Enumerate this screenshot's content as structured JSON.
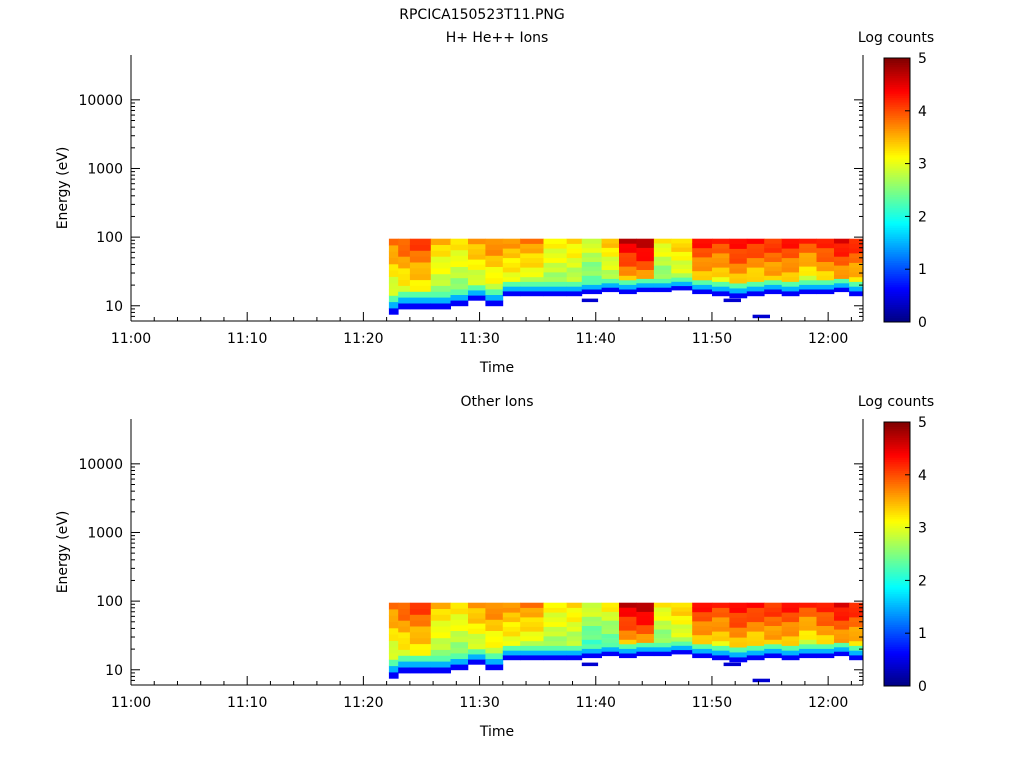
{
  "figure_title": "RPCICA150523T11.PNG",
  "colorbar_label": "Log counts",
  "colorbar_ticks": [
    "0",
    "1",
    "2",
    "3",
    "4",
    "5"
  ],
  "chart_data": [
    {
      "type": "heatmap",
      "title": "H+ He++ Ions",
      "xlabel": "Time",
      "ylabel": "Energy (eV)",
      "x_ticks": [
        "11:00",
        "11:10",
        "11:20",
        "11:30",
        "11:40",
        "11:50",
        "12:00"
      ],
      "y_ticks": [
        "10",
        "100",
        "1000",
        "10000"
      ],
      "y_scale": "log",
      "y_range": [
        6,
        45000
      ],
      "x_range_minutes": [
        0,
        63
      ],
      "color_range": [
        0,
        5
      ],
      "time_columns": [
        {
          "start": 22.2,
          "end": 23.0,
          "floor": 7.5,
          "upper": 3.8,
          "lower": 2.8
        },
        {
          "start": 23.0,
          "end": 24.0,
          "floor": 9.0,
          "upper": 4.0,
          "lower": 3.0
        },
        {
          "start": 24.0,
          "end": 25.8,
          "floor": 9.0,
          "upper": 4.1,
          "lower": 3.1
        },
        {
          "start": 25.8,
          "end": 27.5,
          "floor": 9.0,
          "upper": 3.4,
          "lower": 2.7
        },
        {
          "start": 27.5,
          "end": 29.0,
          "floor": 10.0,
          "upper": 3.3,
          "lower": 2.6
        },
        {
          "start": 29.0,
          "end": 30.5,
          "floor": 12.0,
          "upper": 3.6,
          "lower": 2.8
        },
        {
          "start": 30.5,
          "end": 32.0,
          "floor": 10.0,
          "upper": 3.8,
          "lower": 2.9
        },
        {
          "start": 32.0,
          "end": 33.5,
          "floor": 14.0,
          "upper": 3.6,
          "lower": 3.0
        },
        {
          "start": 33.5,
          "end": 35.5,
          "floor": 14.0,
          "upper": 3.7,
          "lower": 2.9
        },
        {
          "start": 35.5,
          "end": 37.5,
          "floor": 14.0,
          "upper": 3.2,
          "lower": 2.7
        },
        {
          "start": 37.5,
          "end": 38.8,
          "floor": 14.0,
          "upper": 3.3,
          "lower": 2.7
        },
        {
          "start": 38.8,
          "end": 40.5,
          "floor": 15.0,
          "upper": 3.0,
          "lower": 2.4
        },
        {
          "start": 40.5,
          "end": 42.0,
          "floor": 16.0,
          "upper": 3.4,
          "lower": 2.7
        },
        {
          "start": 42.0,
          "end": 43.5,
          "floor": 15.0,
          "upper": 4.6,
          "lower": 3.5
        },
        {
          "start": 43.5,
          "end": 45.0,
          "floor": 16.0,
          "upper": 4.8,
          "lower": 3.6
        },
        {
          "start": 45.0,
          "end": 46.5,
          "floor": 16.0,
          "upper": 3.2,
          "lower": 2.5
        },
        {
          "start": 46.5,
          "end": 48.3,
          "floor": 17.0,
          "upper": 3.4,
          "lower": 2.8
        },
        {
          "start": 48.3,
          "end": 50.0,
          "floor": 15.0,
          "upper": 4.3,
          "lower": 3.3
        },
        {
          "start": 50.0,
          "end": 51.5,
          "floor": 14.0,
          "upper": 4.1,
          "lower": 3.2
        },
        {
          "start": 51.5,
          "end": 53.0,
          "floor": 13.0,
          "upper": 4.4,
          "lower": 3.4
        },
        {
          "start": 53.0,
          "end": 54.5,
          "floor": 14.0,
          "upper": 4.3,
          "lower": 3.2
        },
        {
          "start": 54.5,
          "end": 56.0,
          "floor": 15.0,
          "upper": 4.2,
          "lower": 3.4
        },
        {
          "start": 56.0,
          "end": 57.5,
          "floor": 14.0,
          "upper": 4.3,
          "lower": 3.3
        },
        {
          "start": 57.5,
          "end": 59.0,
          "floor": 15.0,
          "upper": 4.1,
          "lower": 3.0
        },
        {
          "start": 59.0,
          "end": 60.5,
          "floor": 15.0,
          "upper": 4.3,
          "lower": 3.3
        },
        {
          "start": 60.5,
          "end": 61.8,
          "floor": 16.0,
          "upper": 4.5,
          "lower": 3.5
        },
        {
          "start": 61.8,
          "end": 63.0,
          "floor": 14.0,
          "upper": 4.3,
          "lower": 3.3
        }
      ],
      "isolated_low_bins": [
        {
          "start": 38.8,
          "end": 40.2,
          "energy": 12
        },
        {
          "start": 51.0,
          "end": 52.5,
          "energy": 12
        },
        {
          "start": 53.5,
          "end": 55.0,
          "energy": 7
        }
      ]
    },
    {
      "type": "heatmap",
      "title": "Other Ions",
      "xlabel": "Time",
      "ylabel": "Energy (eV)",
      "x_ticks": [
        "11:00",
        "11:10",
        "11:20",
        "11:30",
        "11:40",
        "11:50",
        "12:00"
      ],
      "y_ticks": [
        "10",
        "100",
        "1000",
        "10000"
      ],
      "y_scale": "log",
      "y_range": [
        6,
        45000
      ],
      "x_range_minutes": [
        0,
        63
      ],
      "color_range": [
        0,
        5
      ],
      "time_columns": [
        {
          "start": 22.2,
          "end": 23.0,
          "floor": 7.5,
          "upper": 3.8,
          "lower": 2.8
        },
        {
          "start": 23.0,
          "end": 24.0,
          "floor": 9.0,
          "upper": 4.0,
          "lower": 3.0
        },
        {
          "start": 24.0,
          "end": 25.8,
          "floor": 9.0,
          "upper": 4.1,
          "lower": 3.1
        },
        {
          "start": 25.8,
          "end": 27.5,
          "floor": 9.0,
          "upper": 3.4,
          "lower": 2.7
        },
        {
          "start": 27.5,
          "end": 29.0,
          "floor": 10.0,
          "upper": 3.3,
          "lower": 2.6
        },
        {
          "start": 29.0,
          "end": 30.5,
          "floor": 12.0,
          "upper": 3.6,
          "lower": 2.8
        },
        {
          "start": 30.5,
          "end": 32.0,
          "floor": 10.0,
          "upper": 3.8,
          "lower": 2.9
        },
        {
          "start": 32.0,
          "end": 33.5,
          "floor": 14.0,
          "upper": 3.6,
          "lower": 3.0
        },
        {
          "start": 33.5,
          "end": 35.5,
          "floor": 14.0,
          "upper": 3.7,
          "lower": 2.9
        },
        {
          "start": 35.5,
          "end": 37.5,
          "floor": 14.0,
          "upper": 3.2,
          "lower": 2.7
        },
        {
          "start": 37.5,
          "end": 38.8,
          "floor": 14.0,
          "upper": 3.3,
          "lower": 2.7
        },
        {
          "start": 38.8,
          "end": 40.5,
          "floor": 15.0,
          "upper": 3.0,
          "lower": 2.2
        },
        {
          "start": 40.5,
          "end": 42.0,
          "floor": 16.0,
          "upper": 3.2,
          "lower": 2.3
        },
        {
          "start": 42.0,
          "end": 43.5,
          "floor": 15.0,
          "upper": 4.6,
          "lower": 3.5
        },
        {
          "start": 43.5,
          "end": 45.0,
          "floor": 16.0,
          "upper": 4.8,
          "lower": 3.6
        },
        {
          "start": 45.0,
          "end": 46.5,
          "floor": 16.0,
          "upper": 3.2,
          "lower": 2.5
        },
        {
          "start": 46.5,
          "end": 48.3,
          "floor": 17.0,
          "upper": 3.4,
          "lower": 2.8
        },
        {
          "start": 48.3,
          "end": 50.0,
          "floor": 15.0,
          "upper": 4.3,
          "lower": 3.3
        },
        {
          "start": 50.0,
          "end": 51.5,
          "floor": 14.0,
          "upper": 4.1,
          "lower": 3.2
        },
        {
          "start": 51.5,
          "end": 53.0,
          "floor": 13.0,
          "upper": 4.4,
          "lower": 3.4
        },
        {
          "start": 53.0,
          "end": 54.5,
          "floor": 14.0,
          "upper": 4.3,
          "lower": 3.2
        },
        {
          "start": 54.5,
          "end": 56.0,
          "floor": 15.0,
          "upper": 4.2,
          "lower": 3.4
        },
        {
          "start": 56.0,
          "end": 57.5,
          "floor": 14.0,
          "upper": 4.3,
          "lower": 3.3
        },
        {
          "start": 57.5,
          "end": 59.0,
          "floor": 15.0,
          "upper": 4.1,
          "lower": 3.0
        },
        {
          "start": 59.0,
          "end": 60.5,
          "floor": 15.0,
          "upper": 4.3,
          "lower": 3.3
        },
        {
          "start": 60.5,
          "end": 61.8,
          "floor": 16.0,
          "upper": 4.5,
          "lower": 3.5
        },
        {
          "start": 61.8,
          "end": 63.0,
          "floor": 14.0,
          "upper": 4.3,
          "lower": 3.3
        }
      ],
      "isolated_low_bins": [
        {
          "start": 38.8,
          "end": 40.2,
          "energy": 12
        },
        {
          "start": 51.0,
          "end": 52.5,
          "energy": 12
        },
        {
          "start": 53.5,
          "end": 55.0,
          "energy": 7
        }
      ]
    }
  ]
}
